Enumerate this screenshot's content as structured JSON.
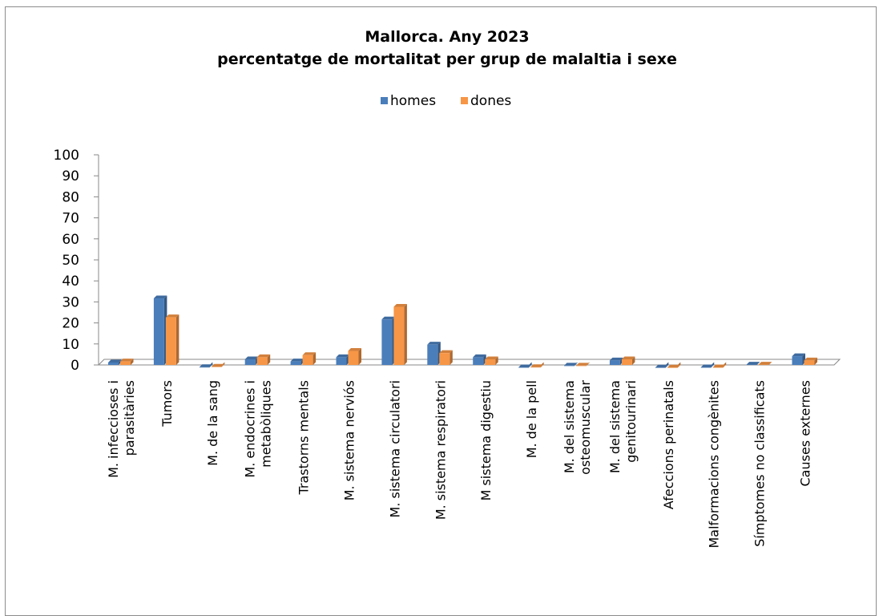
{
  "chart_data": {
    "type": "bar",
    "title_lines": [
      "Mallorca. Any 2023",
      "percentatge de mortalitat per grup de malaltia i sexe"
    ],
    "xlabel": "",
    "ylabel": "",
    "ylim": [
      0,
      100
    ],
    "y_ticks": [
      0,
      10,
      20,
      30,
      40,
      50,
      60,
      70,
      80,
      90,
      100
    ],
    "legend_position": "top",
    "categories": [
      [
        "M. infeccioses i",
        "parasitàries"
      ],
      [
        "Tumors"
      ],
      [
        "M. de la sang"
      ],
      [
        "M. endocrines i",
        "metabòliques"
      ],
      [
        "Trastorns  mentals"
      ],
      [
        "M. sistema nerviós"
      ],
      [
        "M. sistema circulatori"
      ],
      [
        "M. sistema respiratori"
      ],
      [
        "M sistema digestiu"
      ],
      [
        "M. de la pell"
      ],
      [
        "M. del sistema",
        "osteomuscular"
      ],
      [
        "M. del sistema",
        "genitourinari"
      ],
      [
        "Afeccions perinatals"
      ],
      [
        "Malformacions congènites"
      ],
      [
        "Símptomes no classificats"
      ],
      [
        "Causes externes"
      ]
    ],
    "series": [
      {
        "name": "homes",
        "color": "#4a7ebb",
        "values": [
          2.5,
          33,
          0.3,
          4,
          3,
          5,
          23,
          11,
          5,
          0.2,
          1,
          3.5,
          0.1,
          0.2,
          1.5,
          5.5
        ]
      },
      {
        "name": "dones",
        "color": "#f79646",
        "values": [
          3,
          24,
          0.5,
          5,
          6,
          8,
          29,
          7,
          4,
          0.3,
          1,
          4,
          0.1,
          0.2,
          1.5,
          3.5
        ]
      }
    ]
  }
}
